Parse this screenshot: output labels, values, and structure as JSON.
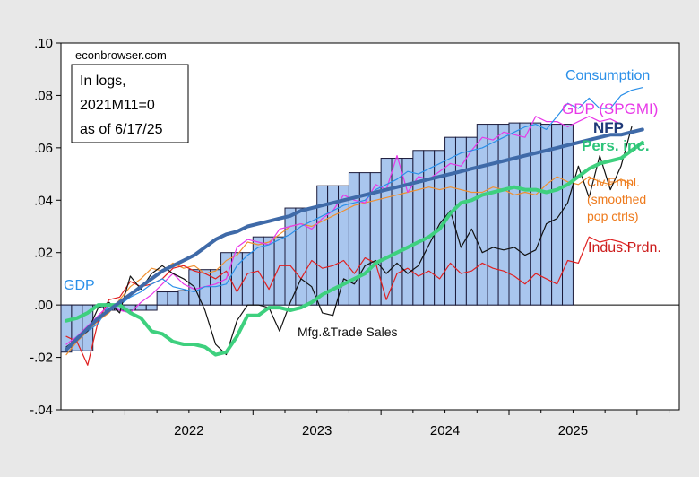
{
  "chart_data": {
    "type": "line",
    "source_note": "econbrowser.com",
    "box_text": [
      "In logs,",
      "2021M11=0",
      "as of 6/17/25"
    ],
    "y_axis": {
      "min": -0.04,
      "max": 0.1,
      "ticks": [
        ".10",
        ".08",
        ".06",
        ".04",
        ".02",
        ".00",
        "-.02",
        "-.04"
      ],
      "tick_values": [
        0.1,
        0.08,
        0.06,
        0.04,
        0.02,
        0.0,
        -0.02,
        -0.04
      ]
    },
    "x_axis": {
      "start": 2021.5,
      "end": 2026.33,
      "year_labels": [
        "2022",
        "2023",
        "2024",
        "2025"
      ],
      "year_values": [
        2022,
        2023,
        2024,
        2025
      ]
    },
    "gdp_bars": {
      "name": "GDP",
      "color": "#a9c6ee",
      "values": [
        -0.018,
        -0.0175,
        -0.0175,
        -0.001,
        -0.002,
        -0.002,
        -0.002,
        -0.002,
        -0.002,
        0.005,
        0.005,
        0.0055,
        0.0135,
        0.0135,
        0.0135,
        0.02,
        0.02,
        0.02,
        0.026,
        0.026,
        0.026,
        0.037,
        0.037,
        0.037,
        0.0455,
        0.0455,
        0.0455,
        0.0505,
        0.0505,
        0.0505,
        0.056,
        0.056,
        0.056,
        0.059,
        0.059,
        0.059,
        0.064,
        0.064,
        0.064,
        0.069,
        0.069,
        0.069,
        0.0695,
        0.0695,
        0.0695,
        0.069,
        0.069,
        0.069
      ]
    },
    "series": [
      {
        "name": "Consumption",
        "color": "#2a8fe8",
        "width": 1.2,
        "label_color": "#2a8fe8",
        "values": [
          -0.017,
          -0.012,
          -0.01,
          -0.007,
          0.0,
          0.0,
          0.003,
          0.005,
          0.008,
          0.01,
          0.007,
          0.006,
          0.005,
          0.007,
          0.007,
          0.008,
          0.015,
          0.019,
          0.022,
          0.023,
          0.025,
          0.027,
          0.03,
          0.032,
          0.034,
          0.036,
          0.038,
          0.039,
          0.04,
          0.044,
          0.046,
          0.048,
          0.051,
          0.05,
          0.052,
          0.054,
          0.056,
          0.058,
          0.059,
          0.06,
          0.062,
          0.064,
          0.066,
          0.068,
          0.069,
          0.067,
          0.072,
          0.077,
          0.075,
          0.079,
          0.075,
          0.075,
          0.08,
          0.082,
          0.083
        ]
      },
      {
        "name": "GDP (SPGMI)",
        "color": "#e838e8",
        "width": 1.2,
        "label_color": "#e838e8",
        "values": [
          -0.015,
          -0.012,
          -0.008,
          -0.004,
          0.0,
          -0.002,
          -0.003,
          0.001,
          0.004,
          0.008,
          0.012,
          0.008,
          0.006,
          0.007,
          0.008,
          0.01,
          0.022,
          0.025,
          0.024,
          0.023,
          0.029,
          0.03,
          0.031,
          0.029,
          0.033,
          0.036,
          0.042,
          0.04,
          0.039,
          0.046,
          0.044,
          0.057,
          0.043,
          0.049,
          0.048,
          0.051,
          0.054,
          0.053,
          0.059,
          0.064,
          0.063,
          0.066,
          0.065,
          0.064,
          0.072,
          0.07,
          0.07,
          0.068,
          0.07,
          0.072,
          0.07,
          0.071,
          0.069
        ]
      },
      {
        "name": "NFP",
        "color": "#3f6aa8",
        "width": 4,
        "label_color": "#1f3a78",
        "values": [
          -0.017,
          -0.013,
          -0.009,
          -0.005,
          -0.002,
          0.001,
          0.004,
          0.007,
          0.01,
          0.013,
          0.015,
          0.017,
          0.019,
          0.022,
          0.025,
          0.027,
          0.028,
          0.03,
          0.031,
          0.032,
          0.033,
          0.034,
          0.036,
          0.037,
          0.038,
          0.039,
          0.04,
          0.041,
          0.042,
          0.043,
          0.044,
          0.045,
          0.046,
          0.047,
          0.048,
          0.049,
          0.05,
          0.051,
          0.052,
          0.053,
          0.054,
          0.055,
          0.056,
          0.057,
          0.058,
          0.059,
          0.06,
          0.061,
          0.062,
          0.063,
          0.064,
          0.065,
          0.065,
          0.066,
          0.067
        ]
      },
      {
        "name": "Pers. inc.",
        "color": "#3ed07e",
        "width": 4,
        "label_color": "#2dc47a",
        "values": [
          -0.006,
          -0.005,
          -0.003,
          0.0,
          0.0,
          0.0,
          -0.003,
          -0.005,
          -0.01,
          -0.011,
          -0.014,
          -0.015,
          -0.015,
          -0.016,
          -0.019,
          -0.018,
          -0.012,
          -0.004,
          -0.004,
          -0.001,
          -0.001,
          -0.002,
          -0.001,
          0.001,
          0.004,
          0.006,
          0.008,
          0.01,
          0.012,
          0.016,
          0.018,
          0.02,
          0.022,
          0.024,
          0.026,
          0.029,
          0.035,
          0.039,
          0.04,
          0.042,
          0.043,
          0.044,
          0.045,
          0.044,
          0.044,
          0.043,
          0.044,
          0.046,
          0.049,
          0.052,
          0.054,
          0.055,
          0.056,
          0.059,
          0.062
        ]
      },
      {
        "name": "Civ.Empl. (smoothed pop ctrls)",
        "color": "#f09030",
        "width": 1.2,
        "label_color": "#ee7a1c",
        "values": [
          -0.019,
          -0.014,
          -0.01,
          -0.006,
          -0.003,
          0.002,
          0.007,
          0.01,
          0.014,
          0.013,
          0.016,
          0.014,
          0.015,
          0.012,
          0.013,
          0.017,
          0.019,
          0.024,
          0.023,
          0.024,
          0.027,
          0.03,
          0.031,
          0.03,
          0.032,
          0.034,
          0.036,
          0.038,
          0.039,
          0.04,
          0.041,
          0.042,
          0.043,
          0.044,
          0.045,
          0.044,
          0.045,
          0.044,
          0.043,
          0.043,
          0.045,
          0.044,
          0.042,
          0.043,
          0.042,
          0.046,
          0.049,
          0.047,
          0.046,
          0.049,
          0.047,
          0.046,
          0.048,
          0.046
        ]
      },
      {
        "name": "Indus.Prdn.",
        "color": "#e02020",
        "width": 1.2,
        "label_color": "#cc1b1b",
        "values": [
          -0.012,
          -0.014,
          -0.023,
          -0.006,
          0.002,
          0.003,
          0.009,
          0.007,
          0.008,
          0.01,
          0.014,
          0.015,
          0.013,
          0.012,
          0.01,
          0.013,
          0.005,
          0.012,
          0.013,
          0.006,
          0.015,
          0.015,
          0.01,
          0.017,
          0.014,
          0.015,
          0.017,
          0.012,
          0.018,
          0.016,
          0.002,
          0.012,
          0.014,
          0.011,
          0.013,
          0.01,
          0.016,
          0.012,
          0.013,
          0.016,
          0.014,
          0.013,
          0.011,
          0.008,
          0.012,
          0.01,
          0.008,
          0.017,
          0.016,
          0.026,
          0.024,
          0.025,
          0.024,
          0.022
        ]
      },
      {
        "name": "Mfg.&Trade Sales",
        "color": "#111111",
        "width": 1.2,
        "label_color": "#111111",
        "values": [
          -0.016,
          -0.013,
          -0.01,
          -0.001,
          0.001,
          -0.003,
          0.011,
          0.006,
          0.012,
          0.015,
          0.012,
          0.01,
          0.007,
          -0.002,
          -0.015,
          -0.019,
          -0.006,
          0.0,
          0.0,
          -0.001,
          -0.01,
          0.001,
          0.01,
          0.007,
          -0.003,
          -0.004,
          0.01,
          0.008,
          0.015,
          0.017,
          0.012,
          0.016,
          0.012,
          0.015,
          0.023,
          0.031,
          0.036,
          0.022,
          0.029,
          0.02,
          0.022,
          0.021,
          0.022,
          0.019,
          0.021,
          0.031,
          0.033,
          0.039,
          0.053,
          0.041,
          0.057,
          0.044,
          0.053,
          0.068
        ]
      }
    ]
  }
}
